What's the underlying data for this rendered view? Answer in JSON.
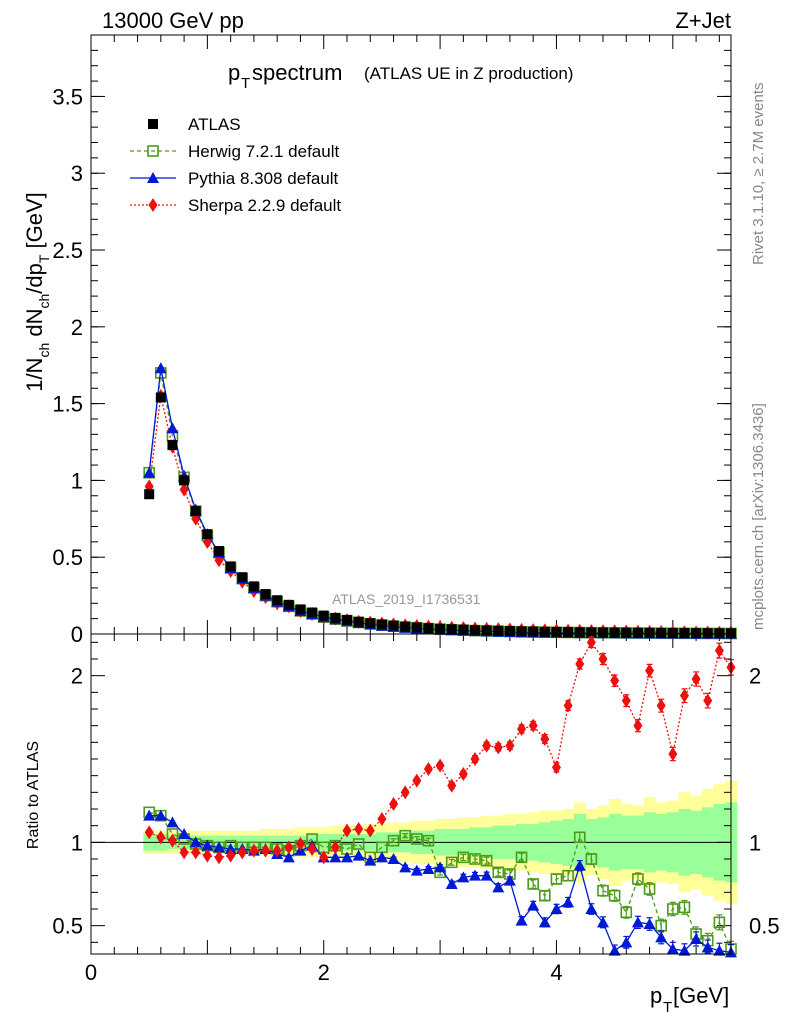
{
  "header": {
    "energy_label": "13000 GeV pp",
    "process_label": "Z+Jet",
    "title_main": "p",
    "title_sub": "T",
    "title_rest": " spectrum",
    "title_paren": "(ATLAS UE in Z production)",
    "side_top": "Rivet 3.1.10, ≥ 2.7M events",
    "side_bottom": "mcplots.cern.ch [arXiv:1306.3436]",
    "watermark": "ATLAS_2019_I1736531",
    "ratio_ylabel": "Ratio to ATLAS",
    "xlabel_main": "p",
    "xlabel_sub": "T",
    "xlabel_unit": " [GeV]"
  },
  "colors": {
    "atlas": "#000000",
    "herwig": "#4d9a1a",
    "pythia": "#0019d4",
    "sherpa": "#ee1010",
    "band_outer": "#ffff99",
    "band_inner": "#99ff99"
  },
  "legend": [
    {
      "key": "atlas",
      "label": "ATLAS"
    },
    {
      "key": "herwig",
      "label": "Herwig 7.2.1 default"
    },
    {
      "key": "pythia",
      "label": "Pythia 8.308 default"
    },
    {
      "key": "sherpa",
      "label": "Sherpa 2.2.9 default"
    }
  ],
  "chart_data": {
    "type": "line",
    "title": "pT spectrum (ATLAS UE in Z production)",
    "xlabel": "pT [GeV]",
    "ylabel": "1/Nch dNch/dpT [GeV]",
    "xlim": [
      0,
      5.5
    ],
    "ylim": [
      0,
      3.9
    ],
    "ratio_ylim": [
      0.33,
      2.25
    ],
    "x_ticks": [
      0,
      2,
      4
    ],
    "y_ticks": [
      0,
      0.5,
      1,
      1.5,
      2,
      2.5,
      3,
      3.5
    ],
    "ratio_y_ticks": [
      0.5,
      1,
      2
    ],
    "x": [
      0.5,
      0.6,
      0.7,
      0.8,
      0.9,
      1.0,
      1.1,
      1.2,
      1.3,
      1.4,
      1.5,
      1.6,
      1.7,
      1.8,
      1.9,
      2.0,
      2.1,
      2.2,
      2.3,
      2.4,
      2.5,
      2.6,
      2.7,
      2.8,
      2.9,
      3.0,
      3.1,
      3.2,
      3.3,
      3.4,
      3.5,
      3.6,
      3.7,
      3.8,
      3.9,
      4.0,
      4.1,
      4.2,
      4.3,
      4.4,
      4.5,
      4.6,
      4.7,
      4.8,
      4.9,
      5.0,
      5.1,
      5.2,
      5.3,
      5.4,
      5.5
    ],
    "series": [
      {
        "name": "ATLAS",
        "values": [
          0.91,
          1.54,
          1.23,
          1.0,
          0.8,
          0.65,
          0.54,
          0.44,
          0.37,
          0.31,
          0.26,
          0.22,
          0.19,
          0.16,
          0.14,
          0.12,
          0.105,
          0.092,
          0.08,
          0.07,
          0.062,
          0.055,
          0.048,
          0.043,
          0.038,
          0.034,
          0.031,
          0.028,
          0.025,
          0.023,
          0.021,
          0.019,
          0.017,
          0.016,
          0.014,
          0.013,
          0.012,
          0.011,
          0.01,
          0.0095,
          0.0088,
          0.0082,
          0.0076,
          0.0071,
          0.0066,
          0.0062,
          0.0058,
          0.0054,
          0.0051,
          0.0048,
          0.0045
        ]
      },
      {
        "name": "Herwig 7.2.1 default",
        "values": [
          1.05,
          1.7,
          1.29,
          1.02,
          0.8,
          0.64,
          0.53,
          0.43,
          0.36,
          0.3,
          0.25,
          0.21,
          0.18,
          0.15,
          0.13,
          0.11,
          0.097,
          0.085,
          0.075,
          0.066,
          0.058,
          0.051,
          0.045,
          0.04,
          0.035,
          0.031,
          0.028,
          0.025,
          0.022,
          0.02,
          0.018,
          0.016,
          0.014,
          0.013,
          0.012,
          0.011,
          0.01,
          0.009,
          0.0085,
          0.008,
          0.0075,
          0.007,
          0.0065,
          0.006,
          0.0055,
          0.005,
          0.0046,
          0.0042,
          0.0038,
          0.0035,
          0.0032
        ]
      },
      {
        "name": "Pythia 8.308 default",
        "values": [
          1.05,
          1.73,
          1.34,
          1.03,
          0.81,
          0.65,
          0.53,
          0.43,
          0.36,
          0.3,
          0.25,
          0.21,
          0.18,
          0.15,
          0.13,
          0.11,
          0.096,
          0.083,
          0.072,
          0.062,
          0.054,
          0.047,
          0.041,
          0.036,
          0.032,
          0.028,
          0.025,
          0.022,
          0.019,
          0.017,
          0.015,
          0.013,
          0.011,
          0.01,
          0.009,
          0.008,
          0.007,
          0.006,
          0.0055,
          0.005,
          0.0045,
          0.004,
          0.0035,
          0.003,
          0.0027,
          0.0024,
          0.0021,
          0.0019,
          0.0017,
          0.0015,
          0.0013
        ]
      },
      {
        "name": "Sherpa 2.2.9 default",
        "values": [
          0.96,
          1.55,
          1.22,
          0.94,
          0.75,
          0.6,
          0.48,
          0.41,
          0.34,
          0.28,
          0.24,
          0.2,
          0.18,
          0.15,
          0.13,
          0.11,
          0.1,
          0.09,
          0.08,
          0.075,
          0.068,
          0.062,
          0.056,
          0.052,
          0.048,
          0.044,
          0.041,
          0.038,
          0.035,
          0.033,
          0.031,
          0.029,
          0.027,
          0.025,
          0.024,
          0.022,
          0.021,
          0.02,
          0.019,
          0.018,
          0.017,
          0.016,
          0.015,
          0.014,
          0.013,
          0.012,
          0.011,
          0.01,
          0.0095,
          0.009,
          0.0085
        ]
      }
    ],
    "ratio_series": [
      {
        "name": "Herwig 7.2.1 default",
        "x": [
          0.5,
          0.6,
          0.7,
          0.8,
          0.9,
          1.0,
          1.1,
          1.2,
          1.3,
          1.4,
          1.5,
          1.6,
          1.7,
          1.8,
          1.9,
          2.0,
          2.1,
          2.2,
          2.3,
          2.4,
          2.5,
          2.6,
          2.7,
          2.8,
          2.9,
          3.0,
          3.1,
          3.2,
          3.3,
          3.4,
          3.5,
          3.6,
          3.7,
          3.8,
          3.9,
          4.0,
          4.1,
          4.2,
          4.3,
          4.4,
          4.5,
          4.6,
          4.7,
          4.8,
          4.9,
          5.0,
          5.1,
          5.2,
          5.3,
          5.4,
          5.5
        ],
        "values": [
          1.18,
          1.16,
          1.05,
          1.02,
          0.99,
          0.98,
          0.97,
          0.98,
          0.97,
          0.97,
          0.97,
          0.96,
          0.95,
          0.98,
          1.02,
          0.97,
          0.98,
          0.96,
          0.99,
          0.91,
          0.97,
          1.01,
          1.04,
          1.02,
          1.01,
          0.82,
          0.88,
          0.91,
          0.9,
          0.89,
          0.82,
          0.81,
          0.91,
          0.75,
          0.68,
          0.78,
          0.8,
          1.03,
          0.9,
          0.71,
          0.68,
          0.58,
          0.78,
          0.72,
          0.5,
          0.6,
          0.61,
          0.45,
          0.41,
          0.52,
          0.36
        ]
      },
      {
        "name": "Pythia 8.308 default",
        "x": [
          0.5,
          0.6,
          0.7,
          0.8,
          0.9,
          1.0,
          1.1,
          1.2,
          1.3,
          1.4,
          1.5,
          1.6,
          1.7,
          1.8,
          1.9,
          2.0,
          2.1,
          2.2,
          2.3,
          2.4,
          2.5,
          2.6,
          2.7,
          2.8,
          2.9,
          3.0,
          3.1,
          3.2,
          3.3,
          3.4,
          3.5,
          3.6,
          3.7,
          3.8,
          3.9,
          4.0,
          4.1,
          4.2,
          4.3,
          4.4,
          4.5,
          4.6,
          4.7,
          4.8,
          4.9,
          5.0,
          5.1,
          5.2,
          5.3,
          5.4,
          5.5
        ],
        "values": [
          1.16,
          1.16,
          1.12,
          1.05,
          1.0,
          0.98,
          0.97,
          0.96,
          0.96,
          0.95,
          0.96,
          0.93,
          0.91,
          0.95,
          0.98,
          0.91,
          0.91,
          0.91,
          0.92,
          0.89,
          0.91,
          0.9,
          0.85,
          0.83,
          0.84,
          0.85,
          0.75,
          0.79,
          0.8,
          0.8,
          0.73,
          0.77,
          0.53,
          0.62,
          0.52,
          0.6,
          0.64,
          0.86,
          0.6,
          0.52,
          0.35,
          0.4,
          0.52,
          0.51,
          0.43,
          0.36,
          0.35,
          0.42,
          0.37,
          0.35,
          0.34
        ]
      },
      {
        "name": "Sherpa 2.2.9 default",
        "x": [
          0.5,
          0.6,
          0.7,
          0.8,
          0.9,
          1.0,
          1.1,
          1.2,
          1.3,
          1.4,
          1.5,
          1.6,
          1.7,
          1.8,
          1.9,
          2.0,
          2.1,
          2.2,
          2.3,
          2.4,
          2.5,
          2.6,
          2.7,
          2.8,
          2.9,
          3.0,
          3.1,
          3.2,
          3.3,
          3.4,
          3.5,
          3.6,
          3.7,
          3.8,
          3.9,
          4.0,
          4.1,
          4.2,
          4.3,
          4.4,
          4.5,
          4.6,
          4.7,
          4.8,
          4.9,
          5.0,
          5.1,
          5.2,
          5.3,
          5.4,
          5.5
        ],
        "values": [
          1.06,
          1.03,
          1.01,
          0.94,
          0.94,
          0.92,
          0.91,
          0.92,
          0.94,
          0.95,
          0.95,
          0.95,
          0.97,
          0.99,
          0.96,
          0.91,
          0.97,
          1.07,
          1.08,
          1.07,
          1.14,
          1.23,
          1.3,
          1.37,
          1.44,
          1.46,
          1.34,
          1.41,
          1.5,
          1.58,
          1.57,
          1.58,
          1.68,
          1.7,
          1.62,
          1.45,
          1.82,
          2.07,
          2.2,
          2.1,
          1.97,
          1.85,
          1.7,
          2.03,
          1.82,
          1.53,
          1.88,
          1.98,
          1.85,
          2.15,
          2.05
        ]
      }
    ],
    "band_x": [
      0.5,
      0.6,
      0.7,
      0.8,
      0.9,
      1.0,
      1.1,
      1.2,
      1.3,
      1.4,
      1.5,
      1.6,
      1.7,
      1.8,
      1.9,
      2.0,
      2.1,
      2.2,
      2.3,
      2.4,
      2.5,
      2.6,
      2.7,
      2.8,
      2.9,
      3.0,
      3.1,
      3.2,
      3.3,
      3.4,
      3.5,
      3.6,
      3.7,
      3.8,
      3.9,
      4.0,
      4.1,
      4.2,
      4.3,
      4.4,
      4.5,
      4.6,
      4.7,
      4.8,
      4.9,
      5.0,
      5.1,
      5.2,
      5.3,
      5.4,
      5.5
    ],
    "band_outer": [
      0.07,
      0.07,
      0.07,
      0.07,
      0.07,
      0.07,
      0.07,
      0.07,
      0.07,
      0.07,
      0.08,
      0.08,
      0.08,
      0.09,
      0.09,
      0.09,
      0.1,
      0.1,
      0.1,
      0.11,
      0.11,
      0.12,
      0.12,
      0.13,
      0.13,
      0.14,
      0.14,
      0.15,
      0.15,
      0.16,
      0.16,
      0.17,
      0.17,
      0.18,
      0.19,
      0.19,
      0.2,
      0.24,
      0.2,
      0.22,
      0.26,
      0.23,
      0.22,
      0.27,
      0.24,
      0.25,
      0.3,
      0.28,
      0.32,
      0.35,
      0.37
    ],
    "band_inner": [
      0.05,
      0.05,
      0.04,
      0.04,
      0.04,
      0.04,
      0.04,
      0.04,
      0.04,
      0.04,
      0.04,
      0.04,
      0.04,
      0.04,
      0.05,
      0.05,
      0.05,
      0.05,
      0.05,
      0.05,
      0.06,
      0.06,
      0.06,
      0.07,
      0.07,
      0.08,
      0.08,
      0.08,
      0.09,
      0.09,
      0.1,
      0.1,
      0.11,
      0.11,
      0.12,
      0.13,
      0.14,
      0.17,
      0.14,
      0.15,
      0.17,
      0.16,
      0.16,
      0.18,
      0.17,
      0.18,
      0.2,
      0.19,
      0.21,
      0.23,
      0.24
    ]
  }
}
